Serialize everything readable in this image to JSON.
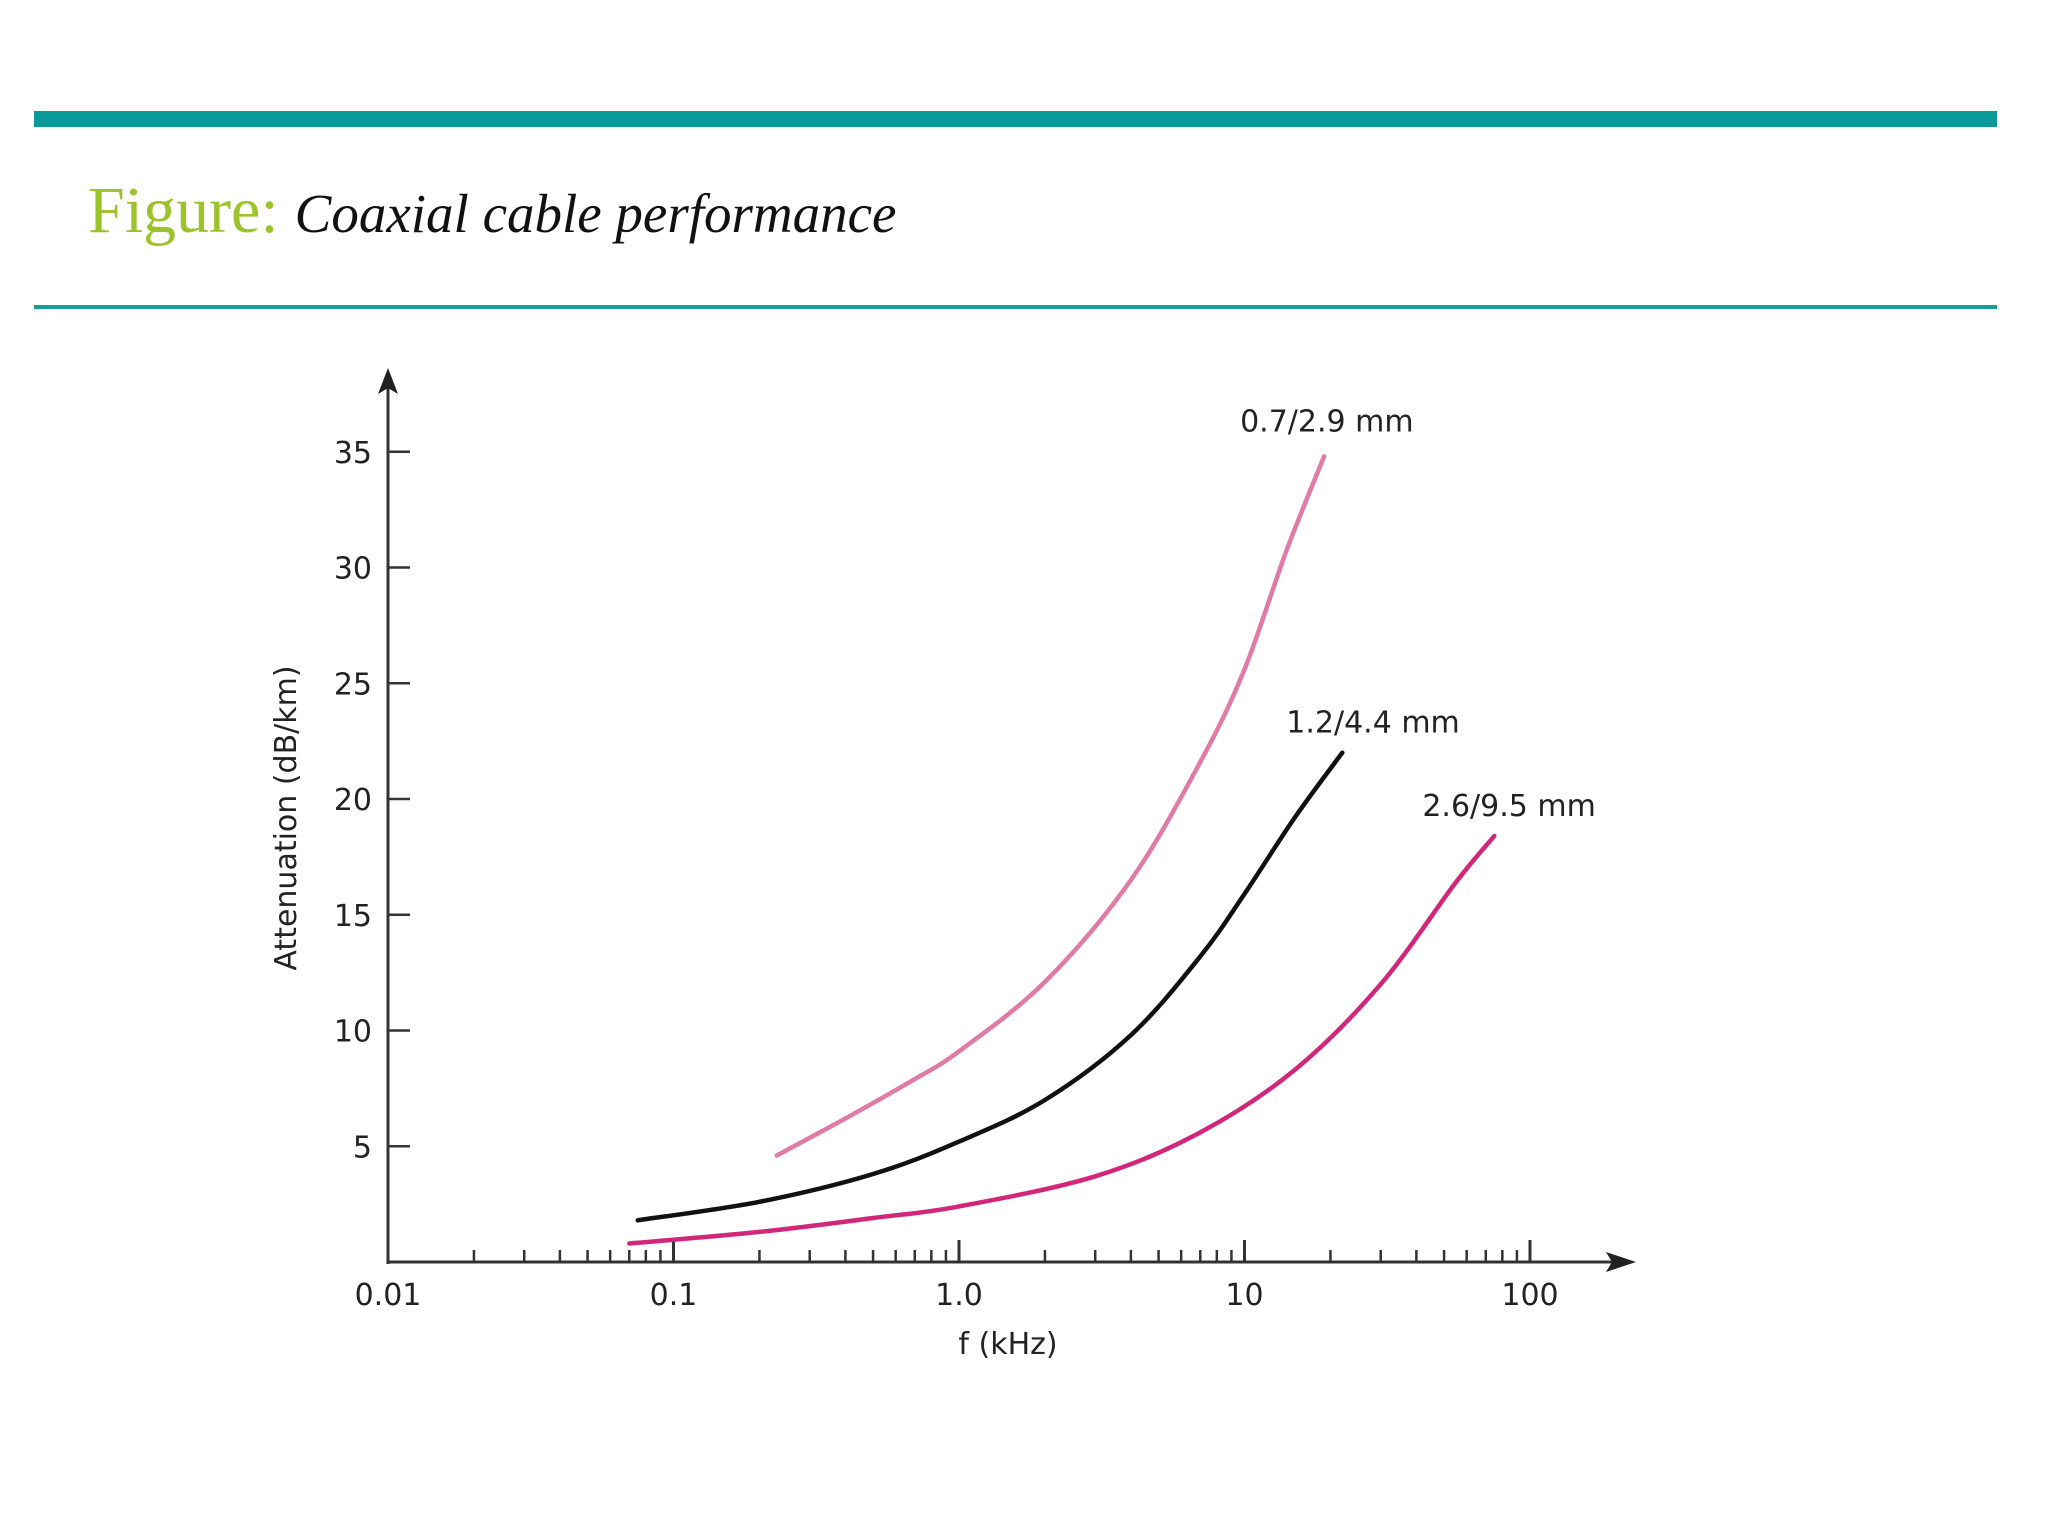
{
  "header": {
    "title_prefix": "Figure:",
    "title_caption": "Coaxial cable performance",
    "bar_color": "#0b9a9a",
    "prefix_color": "#9cc42a"
  },
  "chart_data": {
    "type": "line",
    "title": "",
    "xlabel": "f (kHz)",
    "ylabel": "Attenuation (dB/km)",
    "x_scale": "log",
    "xlim": [
      0.01,
      100
    ],
    "ylim": [
      0,
      35
    ],
    "x_ticks": [
      {
        "value": 0.01,
        "label": "0.01"
      },
      {
        "value": 0.1,
        "label": "0.1"
      },
      {
        "value": 1,
        "label": "1.0"
      },
      {
        "value": 10,
        "label": "10"
      },
      {
        "value": 100,
        "label": "100"
      }
    ],
    "y_ticks": [
      {
        "value": 5,
        "label": "5"
      },
      {
        "value": 10,
        "label": "10"
      },
      {
        "value": 15,
        "label": "15"
      },
      {
        "value": 20,
        "label": "20"
      },
      {
        "value": 25,
        "label": "25"
      },
      {
        "value": 30,
        "label": "30"
      },
      {
        "value": 35,
        "label": "35"
      }
    ],
    "grid": false,
    "legend": "none",
    "series": [
      {
        "name": "0.7/2.9 mm",
        "color": "#e07aa6",
        "x": [
          0.23,
          0.4,
          0.7,
          1.0,
          2.0,
          4.0,
          7.0,
          10.0,
          14.0,
          19.0
        ],
        "y": [
          4.6,
          6.2,
          7.9,
          9.1,
          12.1,
          16.5,
          21.6,
          25.6,
          30.7,
          34.8
        ]
      },
      {
        "name": "1.2/4.4 mm",
        "color": "#111111",
        "x": [
          0.075,
          0.2,
          0.5,
          1.0,
          2.0,
          4.0,
          7.0,
          10.0,
          15.0,
          22.0
        ],
        "y": [
          1.8,
          2.6,
          3.8,
          5.2,
          7.0,
          9.8,
          13.2,
          15.9,
          19.2,
          22.0
        ]
      },
      {
        "name": "2.6/9.5 mm",
        "color": "#d2267a",
        "x": [
          0.07,
          0.2,
          0.5,
          1.0,
          3.0,
          7.0,
          15.0,
          30.0,
          55.0,
          75.0
        ],
        "y": [
          0.8,
          1.3,
          1.9,
          2.4,
          3.7,
          5.6,
          8.3,
          12.0,
          16.4,
          18.4
        ]
      }
    ]
  }
}
